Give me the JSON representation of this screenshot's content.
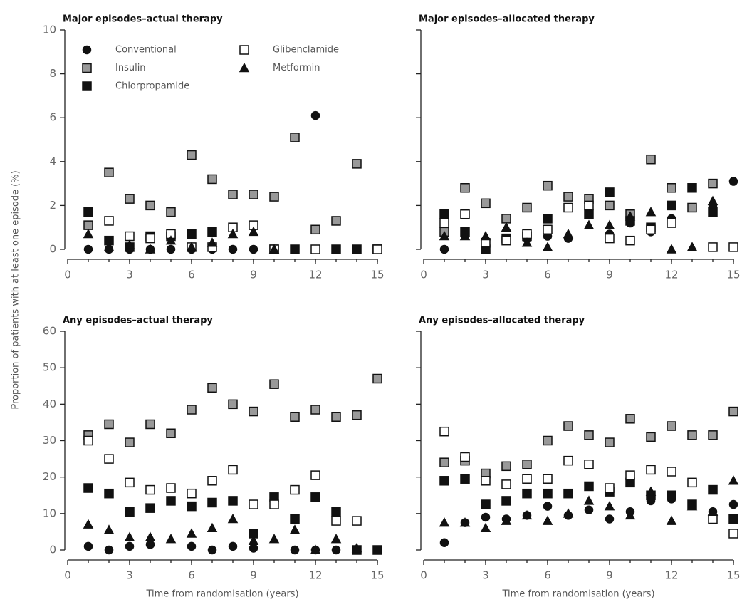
{
  "chart_data": [
    {
      "type": "scatter",
      "title": "Major episodes–actual therapy",
      "ylabel": "Proportion of patients with at least one episode (%)",
      "x": [
        1,
        2,
        3,
        4,
        5,
        6,
        7,
        8,
        9,
        10,
        11,
        12,
        13,
        14,
        15
      ],
      "xlim": [
        0,
        15
      ],
      "xticks": [
        0,
        3,
        6,
        9,
        12,
        15
      ],
      "ylim": [
        0,
        10
      ],
      "yticks": [
        0,
        2,
        4,
        6,
        8,
        10
      ],
      "ytick_labels": true,
      "legend": "upper left",
      "series": [
        {
          "name": "Conventional",
          "color": "#111111",
          "marker": "circle",
          "values": [
            0,
            0,
            0,
            0,
            0,
            0,
            0,
            0,
            0,
            0,
            0,
            6.1,
            0,
            0,
            0
          ]
        },
        {
          "name": "Insulin",
          "color": "#999999",
          "marker": "square",
          "values": [
            1.1,
            3.5,
            2.3,
            2.0,
            1.7,
            4.3,
            3.2,
            2.5,
            2.5,
            2.4,
            5.1,
            0.9,
            1.3,
            3.9,
            0
          ]
        },
        {
          "name": "Chlorpropamide",
          "color": "#111111",
          "marker": "square",
          "values": [
            1.7,
            0.4,
            0.1,
            0.6,
            0.6,
            0.7,
            0.8,
            null,
            null,
            0,
            0,
            null,
            0,
            0,
            0
          ]
        },
        {
          "name": "Glibenclamide",
          "color": "#ffffff",
          "marker": "square",
          "values": [
            null,
            1.3,
            0.6,
            0.5,
            0.7,
            0.1,
            0.1,
            1.0,
            1.1,
            0,
            null,
            0,
            null,
            null,
            0
          ]
        },
        {
          "name": "Metformin",
          "color": "#111111",
          "marker": "triangle",
          "values": [
            0.7,
            0.1,
            0.2,
            0,
            0.4,
            0.1,
            0.3,
            0.7,
            0.8,
            0,
            null,
            null,
            null,
            null,
            null
          ]
        }
      ]
    },
    {
      "type": "scatter",
      "title": "Major episodes–allocated therapy",
      "x": [
        1,
        2,
        3,
        4,
        5,
        6,
        7,
        8,
        9,
        10,
        11,
        12,
        13,
        14,
        15
      ],
      "xlim": [
        0,
        15
      ],
      "xticks": [
        0,
        3,
        6,
        9,
        12,
        15
      ],
      "ylim": [
        0,
        10
      ],
      "yticks": [
        0,
        2,
        4,
        6,
        8,
        10
      ],
      "ytick_labels": false,
      "series": [
        {
          "color": "#111111",
          "marker": "circle",
          "values": [
            0,
            0.7,
            0.4,
            0.5,
            0.5,
            0.6,
            0.5,
            1.6,
            0.7,
            1.2,
            0.8,
            1.4,
            null,
            2.0,
            3.1
          ]
        },
        {
          "color": "#999999",
          "marker": "square",
          "values": [
            0.8,
            2.8,
            2.1,
            1.4,
            1.9,
            2.9,
            2.4,
            2.3,
            2.0,
            1.6,
            4.1,
            2.8,
            1.9,
            3.0,
            null
          ]
        },
        {
          "color": "#111111",
          "marker": "square",
          "values": [
            1.6,
            0.8,
            0,
            0.5,
            0.6,
            1.4,
            null,
            1.6,
            2.6,
            1.3,
            1.0,
            2.0,
            2.8,
            1.7,
            null
          ]
        },
        {
          "color": "#ffffff",
          "marker": "square",
          "values": [
            1.2,
            1.6,
            0.3,
            0.4,
            0.7,
            0.9,
            1.9,
            2.0,
            0.5,
            0.4,
            0.9,
            1.2,
            null,
            0.1,
            0.1
          ]
        },
        {
          "color": "#111111",
          "marker": "triangle",
          "values": [
            0.6,
            0.6,
            0.6,
            1.0,
            0.3,
            0.1,
            0.7,
            1.1,
            1.1,
            1.5,
            1.7,
            0,
            0.1,
            2.2,
            null
          ]
        }
      ]
    },
    {
      "type": "scatter",
      "title": "Any episodes–actual therapy",
      "xlabel": "Time from randomisation (years)",
      "x": [
        1,
        2,
        3,
        4,
        5,
        6,
        7,
        8,
        9,
        10,
        11,
        12,
        13,
        14,
        15
      ],
      "xlim": [
        0,
        15
      ],
      "xticks": [
        0,
        3,
        6,
        9,
        12,
        15
      ],
      "ylim": [
        0,
        60
      ],
      "yticks": [
        0,
        10,
        20,
        30,
        40,
        50,
        60
      ],
      "ytick_labels": true,
      "series": [
        {
          "color": "#111111",
          "marker": "circle",
          "values": [
            1,
            0,
            1,
            1.5,
            null,
            1,
            0,
            1,
            0.5,
            null,
            0,
            0,
            0,
            0,
            0
          ]
        },
        {
          "color": "#999999",
          "marker": "square",
          "values": [
            31.5,
            34.5,
            29.5,
            34.5,
            32,
            38.5,
            44.5,
            40,
            38,
            45.5,
            36.5,
            38.5,
            36.5,
            37,
            47
          ]
        },
        {
          "color": "#111111",
          "marker": "square",
          "values": [
            17,
            15.5,
            10.5,
            11.5,
            13.5,
            12,
            13,
            13.5,
            4.5,
            14.5,
            8.5,
            14.5,
            10.5,
            0,
            0
          ]
        },
        {
          "color": "#ffffff",
          "marker": "square",
          "values": [
            30,
            25,
            18.5,
            16.5,
            17,
            15.5,
            19,
            22,
            12.5,
            12.5,
            16.5,
            20.5,
            8,
            8,
            null
          ]
        },
        {
          "color": "#111111",
          "marker": "triangle",
          "values": [
            7,
            5.5,
            3.5,
            3.5,
            3,
            4.5,
            6,
            8.5,
            2.5,
            3,
            5.5,
            0,
            3,
            0.5,
            null
          ]
        }
      ]
    },
    {
      "type": "scatter",
      "title": "Any episodes–allocated therapy",
      "xlabel": "Time from randomisation (years)",
      "x": [
        1,
        2,
        3,
        4,
        5,
        6,
        7,
        8,
        9,
        10,
        11,
        12,
        13,
        14,
        15
      ],
      "xlim": [
        0,
        15
      ],
      "xticks": [
        0,
        3,
        6,
        9,
        12,
        15
      ],
      "ylim": [
        0,
        60
      ],
      "yticks": [
        0,
        10,
        20,
        30,
        40,
        50,
        60
      ],
      "ytick_labels": false,
      "series": [
        {
          "color": "#111111",
          "marker": "circle",
          "values": [
            2,
            7.5,
            9,
            8.5,
            9.5,
            12,
            9.5,
            11,
            8.5,
            10.5,
            13.5,
            14,
            12.5,
            10.5,
            12.5
          ]
        },
        {
          "color": "#999999",
          "marker": "square",
          "values": [
            24,
            24.5,
            21,
            23,
            23.5,
            30,
            34,
            31.5,
            29.5,
            36,
            31,
            34,
            31.5,
            31.5,
            38
          ]
        },
        {
          "color": "#111111",
          "marker": "square",
          "values": [
            19,
            19.5,
            12.5,
            13.5,
            15.5,
            15.5,
            15.5,
            17.5,
            16,
            18.5,
            15,
            15,
            12.5,
            16.5,
            8.5
          ]
        },
        {
          "color": "#ffffff",
          "marker": "square",
          "values": [
            32.5,
            25.5,
            19,
            18,
            19.5,
            19.5,
            24.5,
            23.5,
            17,
            20.5,
            22,
            21.5,
            18.5,
            8.5,
            4.5
          ]
        },
        {
          "color": "#111111",
          "marker": "triangle",
          "values": [
            7.5,
            7.5,
            6,
            8,
            9.5,
            8,
            10,
            13.5,
            12,
            9.5,
            16,
            8,
            12,
            10.5,
            19
          ]
        }
      ]
    }
  ]
}
